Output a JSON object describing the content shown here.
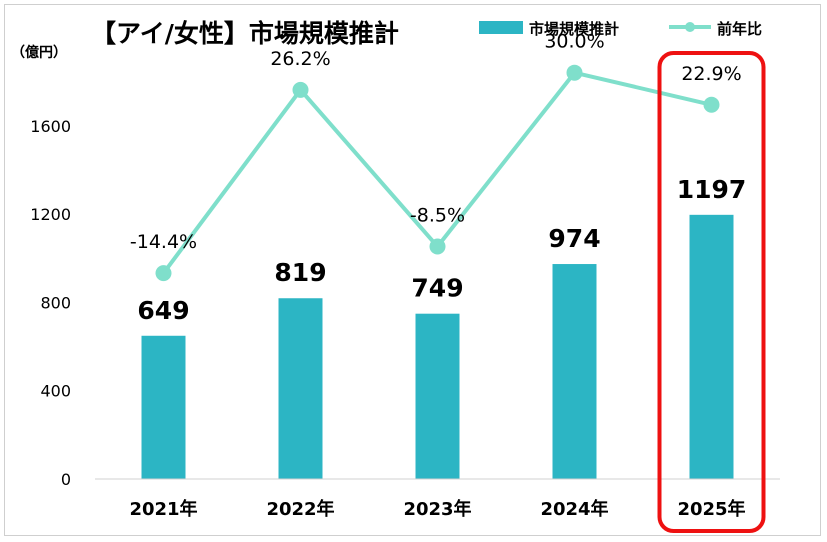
{
  "chart_data": {
    "type": "bar",
    "title": "【アイ/女性】市場規模推計",
    "ylabel": "（億円）",
    "categories": [
      "2021年",
      "2022年",
      "2023年",
      "2024年",
      "2025年"
    ],
    "ylim": [
      0,
      1800
    ],
    "yticks": [
      0,
      400,
      800,
      1200,
      1600
    ],
    "series": [
      {
        "name": "市場規模推計",
        "type": "bar",
        "color": "#2cb5c4",
        "values": [
          649,
          819,
          749,
          974,
          1197
        ],
        "labels": [
          "649",
          "819",
          "749",
          "974",
          "1197"
        ]
      },
      {
        "name": "前年比",
        "type": "line",
        "color": "#7fdfcb",
        "values": [
          -14.4,
          26.2,
          -8.5,
          30.0,
          22.9
        ],
        "labels": [
          "-14.4%",
          "26.2%",
          "-8.5%",
          "30.0%",
          "22.9%"
        ]
      }
    ],
    "line_range": [
      -60,
      45
    ],
    "legend": "top-right",
    "grid": false,
    "highlight": {
      "category": "2025年",
      "color": "#ee1111"
    }
  }
}
